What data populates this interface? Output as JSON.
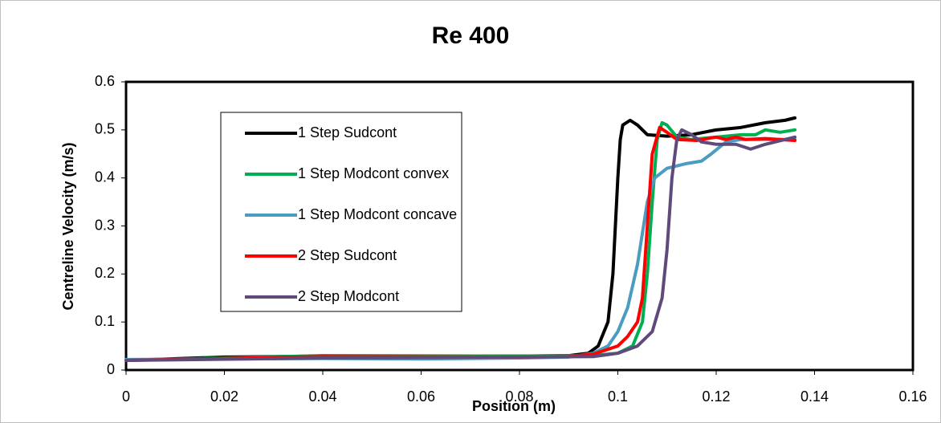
{
  "chart_data": {
    "type": "line",
    "title": "Re 400",
    "x_label": "Position (m)",
    "y_label": "Centreline Velocity (m/s)",
    "xlim": [
      0,
      0.16
    ],
    "xticks": [
      0,
      0.02,
      0.04,
      0.06,
      0.08,
      0.1,
      0.12,
      0.14,
      0.16
    ],
    "ylim": [
      0,
      0.6
    ],
    "yticks": [
      0,
      0.1,
      0.2,
      0.3,
      0.4,
      0.5,
      0.6
    ],
    "grid": false,
    "legend": "upper left",
    "series": [
      {
        "name": "1 Step Sudcont",
        "color": "#000000",
        "x": [
          0,
          0.02,
          0.04,
          0.06,
          0.08,
          0.09,
          0.094,
          0.096,
          0.098,
          0.099,
          0.1,
          0.1005,
          0.101,
          0.1025,
          0.104,
          0.106,
          0.11,
          0.115,
          0.12,
          0.125,
          0.13,
          0.134,
          0.136
        ],
        "values": [
          0.02,
          0.027,
          0.029,
          0.029,
          0.029,
          0.03,
          0.035,
          0.05,
          0.1,
          0.2,
          0.4,
          0.48,
          0.51,
          0.52,
          0.51,
          0.49,
          0.487,
          0.49,
          0.5,
          0.505,
          0.515,
          0.52,
          0.525
        ]
      },
      {
        "name": "1 Step Modcont convex",
        "color": "#00b050",
        "x": [
          0,
          0.04,
          0.08,
          0.095,
          0.1,
          0.103,
          0.105,
          0.106,
          0.107,
          0.108,
          0.109,
          0.11,
          0.112,
          0.115,
          0.12,
          0.125,
          0.128,
          0.13,
          0.133,
          0.136
        ],
        "values": [
          0.02,
          0.03,
          0.029,
          0.03,
          0.035,
          0.05,
          0.1,
          0.2,
          0.35,
          0.48,
          0.515,
          0.51,
          0.485,
          0.48,
          0.485,
          0.49,
          0.49,
          0.5,
          0.495,
          0.5
        ]
      },
      {
        "name": "1 Step Modcont concave",
        "color": "#4a9cc0",
        "x": [
          0,
          0.04,
          0.06,
          0.08,
          0.09,
          0.095,
          0.098,
          0.1,
          0.102,
          0.104,
          0.106,
          0.1075,
          0.11,
          0.114,
          0.117,
          0.119,
          0.122,
          0.125,
          0.13,
          0.136
        ],
        "values": [
          0.022,
          0.024,
          0.023,
          0.025,
          0.027,
          0.035,
          0.05,
          0.08,
          0.13,
          0.22,
          0.35,
          0.4,
          0.42,
          0.43,
          0.435,
          0.45,
          0.475,
          0.48,
          0.48,
          0.48
        ]
      },
      {
        "name": "2 Step Sudcont",
        "color": "#ff0000",
        "x": [
          0,
          0.04,
          0.08,
          0.09,
          0.095,
          0.1,
          0.102,
          0.104,
          0.105,
          0.106,
          0.107,
          0.1085,
          0.11,
          0.112,
          0.116,
          0.12,
          0.122,
          0.124,
          0.126,
          0.13,
          0.136
        ],
        "values": [
          0.02,
          0.028,
          0.027,
          0.028,
          0.033,
          0.05,
          0.07,
          0.1,
          0.15,
          0.3,
          0.45,
          0.505,
          0.495,
          0.48,
          0.478,
          0.485,
          0.48,
          0.485,
          0.48,
          0.482,
          0.478
        ]
      },
      {
        "name": "2 Step Modcont",
        "color": "#604a7b",
        "x": [
          0,
          0.04,
          0.08,
          0.095,
          0.1,
          0.104,
          0.107,
          0.109,
          0.11,
          0.111,
          0.112,
          0.113,
          0.115,
          0.117,
          0.12,
          0.124,
          0.127,
          0.13,
          0.134,
          0.136
        ],
        "values": [
          0.02,
          0.025,
          0.027,
          0.028,
          0.035,
          0.05,
          0.08,
          0.15,
          0.25,
          0.4,
          0.48,
          0.5,
          0.49,
          0.475,
          0.47,
          0.47,
          0.46,
          0.47,
          0.48,
          0.485
        ]
      }
    ]
  }
}
